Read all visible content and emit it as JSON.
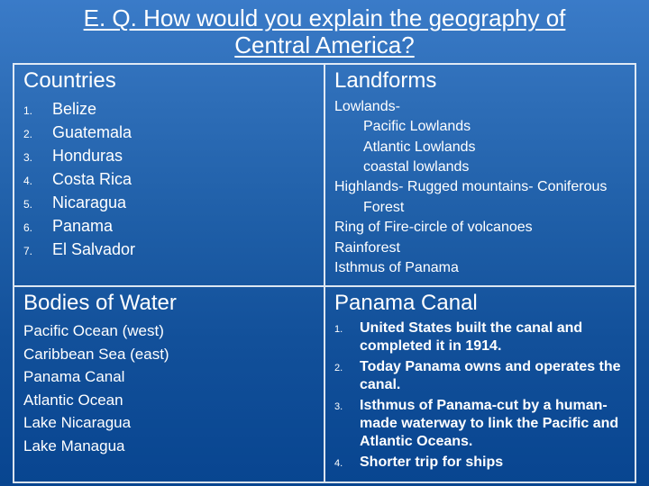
{
  "colors": {
    "text": "#ffffff",
    "border": "#ffffff",
    "bg_top": "#3a7bc8",
    "bg_bottom": "#084590"
  },
  "typography": {
    "title_fontsize": 26,
    "header_fontsize": 24,
    "body_fontsize": 17,
    "numlist_number_fontsize": 12,
    "font_family": "Arial"
  },
  "slide": {
    "title": "E. Q. How would you explain the geography of Central America?"
  },
  "countries": {
    "header": "Countries",
    "items": [
      {
        "n": "1.",
        "label": "Belize"
      },
      {
        "n": "2.",
        "label": "Guatemala"
      },
      {
        "n": "3.",
        "label": "Honduras"
      },
      {
        "n": "4.",
        "label": "Costa Rica"
      },
      {
        "n": "5.",
        "label": "Nicaragua"
      },
      {
        "n": "6.",
        "label": "Panama"
      },
      {
        "n": "7.",
        "label": "El Salvador"
      }
    ]
  },
  "landforms": {
    "header": "Landforms",
    "lines": [
      {
        "text": "Lowlands-",
        "indent": false
      },
      {
        "text": "Pacific Lowlands",
        "indent": true
      },
      {
        "text": "Atlantic Lowlands",
        "indent": true
      },
      {
        "text": "coastal lowlands",
        "indent": true
      },
      {
        "text": "Highlands- Rugged mountains- Coniferous",
        "indent": false
      },
      {
        "text": "Forest",
        "indent": true
      },
      {
        "text": "Ring of Fire-circle of volcanoes",
        "indent": false
      },
      {
        "text": "Rainforest",
        "indent": false
      },
      {
        "text": "Isthmus of Panama",
        "indent": false
      }
    ]
  },
  "bodies_of_water": {
    "header": "Bodies of Water",
    "lines": [
      "Pacific Ocean (west)",
      "Caribbean Sea (east)",
      "Panama Canal",
      "Atlantic Ocean",
      "Lake Nicaragua",
      "Lake Managua"
    ]
  },
  "panama_canal": {
    "header": "Panama Canal",
    "items": [
      {
        "n": "1.",
        "label": "United States built the canal and completed it in 1914."
      },
      {
        "n": "2.",
        "label": "Today Panama owns and operates the canal."
      },
      {
        "n": "3.",
        "label": "Isthmus of Panama-cut by a human-made waterway to link the Pacific and Atlantic Oceans."
      },
      {
        "n": "4.",
        "label": "Shorter trip for ships"
      }
    ]
  }
}
